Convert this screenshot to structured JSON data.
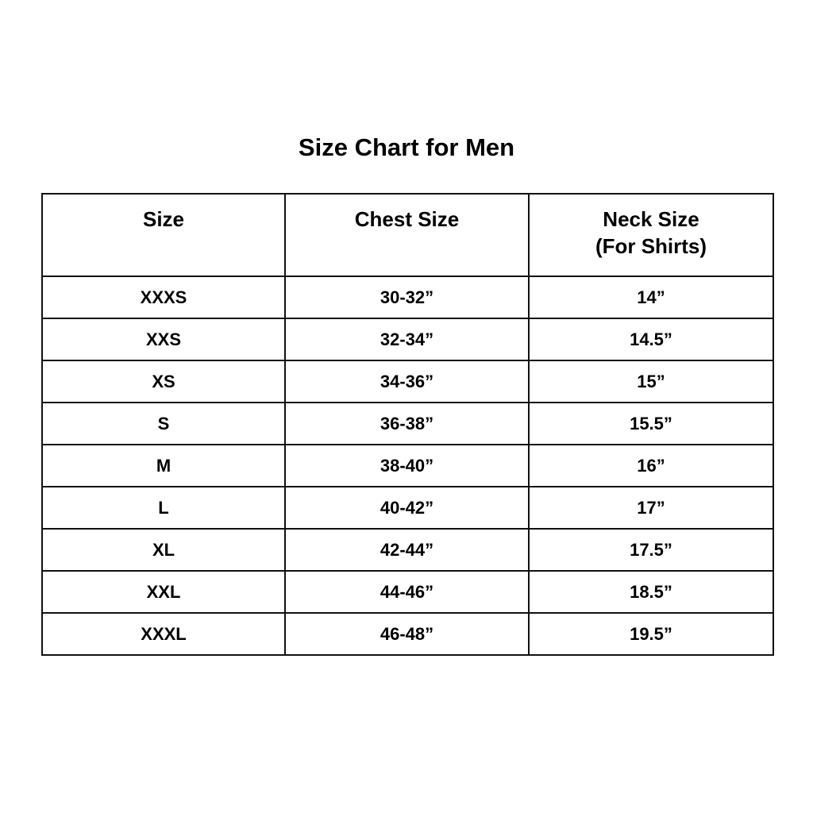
{
  "title": "Size Chart for Men",
  "headers": [
    "Size",
    "Chest Size",
    "Neck Size",
    "(For Shirts)"
  ],
  "rows": [
    {
      "size": "XXXS",
      "chest": "30-32”",
      "neck": "14”"
    },
    {
      "size": "XXS",
      "chest": "32-34”",
      "neck": "14.5”"
    },
    {
      "size": "XS",
      "chest": "34-36”",
      "neck": "15”"
    },
    {
      "size": "S",
      "chest": "36-38”",
      "neck": "15.5”"
    },
    {
      "size": "M",
      "chest": "38-40”",
      "neck": "16”"
    },
    {
      "size": "L",
      "chest": "40-42”",
      "neck": "17”"
    },
    {
      "size": "XL",
      "chest": "42-44”",
      "neck": "17.5”"
    },
    {
      "size": "XXL",
      "chest": "44-46”",
      "neck": "18.5”"
    },
    {
      "size": "XXXL",
      "chest": "46-48”",
      "neck": "19.5”"
    }
  ]
}
